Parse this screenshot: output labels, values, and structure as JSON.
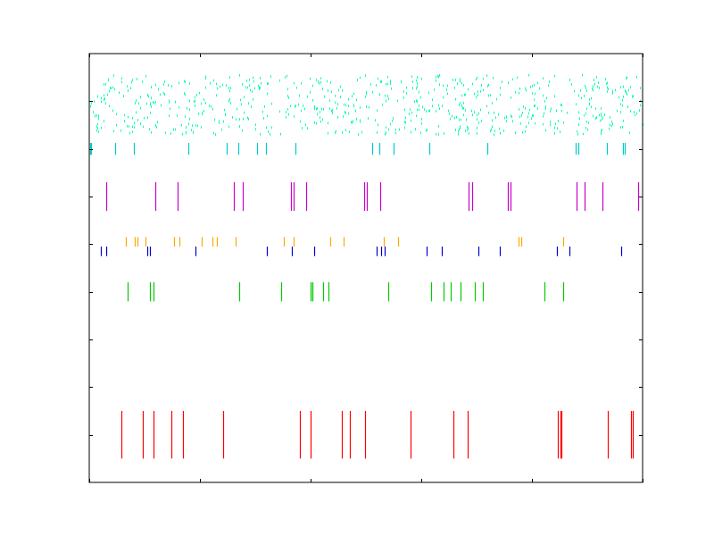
{
  "chart_data": {
    "type": "eventplot",
    "title": "",
    "xlabel": "",
    "ylabel": "",
    "xlim": [
      0,
      1
    ],
    "ylim": [
      -1,
      8
    ],
    "grid": false,
    "legend": "none",
    "x_ticks": [
      0,
      0.2,
      0.4,
      0.6,
      0.8,
      1.0
    ],
    "y_ticks": [
      0,
      1,
      2,
      3,
      4,
      5,
      6,
      7
    ],
    "tick_labels_visible": false,
    "series": [
      {
        "color": "#ff0000",
        "lineoffset": 0,
        "linelength": 1,
        "positions": [
          0.058,
          0.097,
          0.116,
          0.148,
          0.169,
          0.242,
          0.381,
          0.4,
          0.456,
          0.471,
          0.498,
          0.58,
          0.658,
          0.684,
          0.847,
          0.852,
          0.854,
          0.937,
          0.979,
          0.982
        ]
      },
      {
        "color": "#00cc00",
        "lineoffset": 3,
        "linelength": 0.4,
        "positions": [
          0.07,
          0.11,
          0.116,
          0.271,
          0.347,
          0.4,
          0.403,
          0.404,
          0.423,
          0.433,
          0.54,
          0.617,
          0.64,
          0.653,
          0.671,
          0.697,
          0.712,
          0.823,
          0.856
        ]
      },
      {
        "color": "#0000cc",
        "lineoffset": 3.85,
        "linelength": 0.2,
        "positions": [
          0.021,
          0.03,
          0.105,
          0.11,
          0.192,
          0.321,
          0.366,
          0.406,
          0.52,
          0.527,
          0.534,
          0.609,
          0.637,
          0.704,
          0.742,
          0.845,
          0.867,
          0.961
        ]
      },
      {
        "color": "#ffaa00",
        "lineoffset": 4.05,
        "linelength": 0.2,
        "positions": [
          0.066,
          0.082,
          0.087,
          0.102,
          0.154,
          0.163,
          0.203,
          0.222,
          0.23,
          0.265,
          0.351,
          0.37,
          0.435,
          0.459,
          0.532,
          0.558,
          0.775,
          0.781,
          0.856
        ]
      },
      {
        "color": "#cc00cc",
        "lineoffset": 5,
        "linelength": 0.6,
        "positions": [
          0.03,
          0.119,
          0.16,
          0.262,
          0.278,
          0.365,
          0.37,
          0.392,
          0.497,
          0.502,
          0.526,
          0.686,
          0.692,
          0.756,
          0.762,
          0.881,
          0.895,
          0.927,
          0.992
        ]
      },
      {
        "color": "#00cccc",
        "lineoffset": 6,
        "linelength": 0.25,
        "positions": [
          0.002,
          0.004,
          0.047,
          0.081,
          0.179,
          0.249,
          0.27,
          0.304,
          0.319,
          0.373,
          0.511,
          0.524,
          0.55,
          0.614,
          0.72,
          0.879,
          0.884,
          0.935,
          0.965,
          0.968
        ]
      },
      {
        "color": "#00ffaa",
        "lineoffset": 7,
        "linelength": 0.05,
        "dense_random": true,
        "count": 720,
        "y_span": [
          6.3,
          7.55
        ],
        "note_x_range": [
          0,
          1
        ]
      }
    ]
  }
}
